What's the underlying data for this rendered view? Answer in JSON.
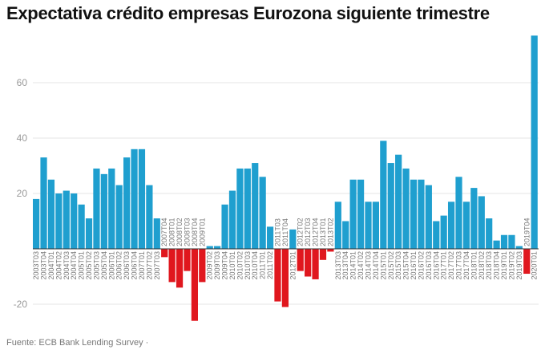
{
  "chart_data": {
    "type": "bar",
    "title": "Expectativa crédito empresas Eurozona siguiente trimestre",
    "source": "Fuente: ECB Bank Lending Survey ·",
    "xlabel": "",
    "ylabel": "",
    "ylim": [
      -25,
      77
    ],
    "yticks": [
      -20,
      20,
      40,
      60
    ],
    "grid": true,
    "colors": {
      "positive": "#1f9fcf",
      "negative": "#e0171e"
    },
    "categories": [
      "2003T03",
      "2003T04",
      "2004T01",
      "2004T02",
      "2004T03",
      "2004T04",
      "2005T01",
      "2005T02",
      "2005T03",
      "2005T04",
      "2006T01",
      "2006T02",
      "2006T03",
      "2006T04",
      "2007T01",
      "2007T02",
      "2007T03",
      "2007T04",
      "2008T01",
      "2008T02",
      "2008T03",
      "2008T04",
      "2009T01",
      "2009T02",
      "2009T03",
      "2009T04",
      "2010T01",
      "2010T02",
      "2010T03",
      "2010T04",
      "2011T01",
      "2011T02",
      "2011T03",
      "2011T04",
      "2012T01",
      "2012T02",
      "2012T03",
      "2012T04",
      "2013T01",
      "2013T02",
      "2013T03",
      "2013T04",
      "2014T01",
      "2014T02",
      "2014T03",
      "2014T04",
      "2015T01",
      "2015T02",
      "2015T03",
      "2015T04",
      "2016T01",
      "2016T02",
      "2016T03",
      "2016T04",
      "2017T01",
      "2017T02",
      "2017T03",
      "2017T04",
      "2018T01",
      "2018T02",
      "2018T03",
      "2018T04",
      "2019T01",
      "2019T02",
      "2019T03",
      "2019T04",
      "2020T01"
    ],
    "values": [
      18,
      33,
      25,
      20,
      21,
      20,
      16,
      11,
      29,
      27,
      29,
      23,
      33,
      36,
      36,
      23,
      11,
      -3,
      -12,
      -14,
      -8,
      -26,
      -12,
      1,
      1,
      16,
      21,
      29,
      29,
      31,
      26,
      8,
      -19,
      -21,
      7,
      -8,
      -10,
      -11,
      -4,
      -1,
      17,
      10,
      25,
      25,
      17,
      17,
      39,
      31,
      34,
      29,
      25,
      25,
      23,
      10,
      12,
      17,
      26,
      17,
      22,
      19,
      11,
      3,
      5,
      5,
      1,
      -9,
      77
    ]
  }
}
